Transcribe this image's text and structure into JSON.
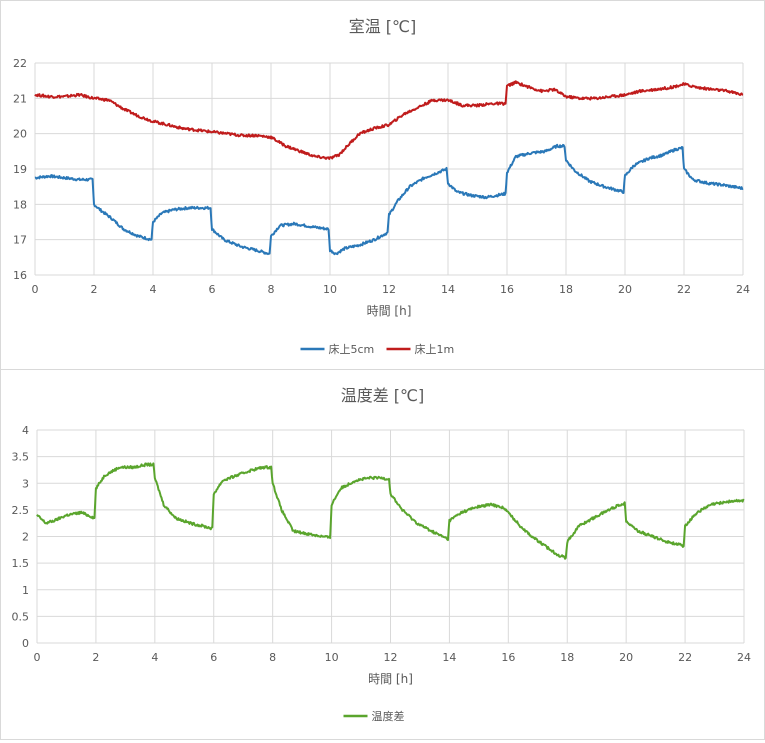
{
  "chart_data": [
    {
      "type": "line",
      "title": "室温 [℃]",
      "xlabel": "時間 [h]",
      "ylabel": "",
      "xlim": [
        0,
        24
      ],
      "ylim": [
        16,
        22
      ],
      "x_ticks": [
        "0",
        "2",
        "4",
        "6",
        "8",
        "10",
        "12",
        "14",
        "16",
        "18",
        "20",
        "22",
        "24"
      ],
      "y_ticks": [
        "16",
        "17",
        "18",
        "19",
        "20",
        "21",
        "22"
      ],
      "grid": true,
      "legend_position": "bottom",
      "series": [
        {
          "name": "床上5cm",
          "color": "#2a78b8",
          "x": [
            0,
            0.5,
            1.0,
            1.5,
            1.95,
            2.0,
            2.2,
            2.6,
            3.0,
            3.5,
            3.95,
            4.0,
            4.3,
            4.7,
            5.2,
            5.95,
            6.0,
            6.4,
            7.0,
            7.5,
            7.95,
            8.0,
            8.3,
            8.8,
            9.5,
            9.95,
            10.0,
            10.2,
            10.5,
            11.0,
            11.5,
            11.95,
            12.0,
            12.3,
            12.7,
            13.2,
            13.95,
            14.0,
            14.3,
            14.8,
            15.3,
            15.95,
            16.0,
            16.3,
            16.8,
            17.3,
            17.7,
            17.95,
            18.0,
            18.3,
            18.8,
            19.3,
            19.95,
            20.0,
            20.3,
            20.8,
            21.3,
            21.7,
            21.95,
            22.0,
            22.3,
            22.8,
            23.3,
            24.0
          ],
          "values": [
            18.75,
            18.8,
            18.75,
            18.7,
            18.7,
            18.0,
            17.85,
            17.6,
            17.3,
            17.1,
            17.0,
            17.5,
            17.75,
            17.85,
            17.9,
            17.9,
            17.3,
            17.0,
            16.8,
            16.7,
            16.6,
            17.1,
            17.4,
            17.45,
            17.35,
            17.3,
            16.7,
            16.6,
            16.75,
            16.85,
            17.0,
            17.2,
            17.7,
            18.1,
            18.5,
            18.75,
            19.0,
            18.6,
            18.35,
            18.25,
            18.2,
            18.3,
            18.9,
            19.35,
            19.45,
            19.5,
            19.65,
            19.65,
            19.25,
            18.95,
            18.65,
            18.5,
            18.35,
            18.8,
            19.1,
            19.3,
            19.4,
            19.55,
            19.6,
            19.0,
            18.7,
            18.6,
            18.55,
            18.45
          ]
        },
        {
          "name": "床上1m",
          "color": "#c01c1c",
          "x": [
            0,
            0.5,
            1.0,
            1.5,
            2.0,
            2.5,
            3.0,
            3.5,
            4.0,
            4.5,
            5.0,
            5.5,
            6.0,
            6.5,
            7.0,
            7.5,
            8.0,
            8.5,
            9.0,
            9.5,
            10.0,
            10.3,
            10.7,
            11.0,
            11.5,
            12.0,
            12.5,
            13.0,
            13.5,
            14.0,
            14.5,
            15.0,
            15.5,
            15.95,
            16.0,
            16.3,
            16.8,
            17.2,
            17.6,
            18.0,
            18.5,
            19.0,
            19.5,
            20.0,
            20.5,
            21.0,
            21.5,
            22.0,
            22.5,
            23.0,
            23.5,
            24.0
          ],
          "values": [
            21.1,
            21.05,
            21.05,
            21.1,
            21.0,
            20.95,
            20.7,
            20.5,
            20.35,
            20.25,
            20.15,
            20.1,
            20.05,
            20.0,
            19.95,
            19.95,
            19.9,
            19.65,
            19.5,
            19.35,
            19.3,
            19.4,
            19.75,
            20.0,
            20.15,
            20.25,
            20.55,
            20.75,
            20.95,
            20.95,
            20.8,
            20.8,
            20.85,
            20.85,
            21.35,
            21.45,
            21.3,
            21.2,
            21.25,
            21.05,
            21.0,
            21.0,
            21.05,
            21.1,
            21.2,
            21.25,
            21.3,
            21.4,
            21.3,
            21.25,
            21.2,
            21.1
          ]
        }
      ]
    },
    {
      "type": "line",
      "title": "温度差 [℃]",
      "xlabel": "時間 [h]",
      "ylabel": "",
      "xlim": [
        0,
        24
      ],
      "ylim": [
        0,
        4
      ],
      "x_ticks": [
        "0",
        "2",
        "4",
        "6",
        "8",
        "10",
        "12",
        "14",
        "16",
        "18",
        "20",
        "22",
        "24"
      ],
      "y_ticks": [
        "0",
        "0.5",
        "1",
        "1.5",
        "2",
        "2.5",
        "3",
        "3.5",
        "4"
      ],
      "grid": true,
      "legend_position": "bottom",
      "series": [
        {
          "name": "温度差",
          "color": "#5aa52d",
          "x": [
            0,
            0.3,
            0.6,
            1.0,
            1.5,
            1.95,
            2.0,
            2.3,
            2.8,
            3.3,
            3.7,
            3.95,
            4.0,
            4.3,
            4.7,
            5.2,
            5.6,
            5.95,
            6.0,
            6.3,
            6.8,
            7.3,
            7.7,
            7.95,
            8.0,
            8.3,
            8.7,
            9.2,
            9.7,
            9.95,
            10.0,
            10.3,
            10.8,
            11.3,
            11.7,
            11.95,
            12.0,
            12.4,
            12.9,
            13.4,
            13.95,
            14.0,
            14.4,
            14.9,
            15.4,
            15.8,
            16.0,
            16.4,
            16.8,
            17.3,
            17.7,
            17.95,
            18.0,
            18.4,
            18.9,
            19.4,
            19.8,
            19.95,
            20.0,
            20.4,
            20.9,
            21.4,
            21.8,
            21.95,
            22.0,
            22.4,
            22.9,
            23.4,
            24.0
          ],
          "values": [
            2.4,
            2.25,
            2.3,
            2.4,
            2.45,
            2.35,
            2.9,
            3.15,
            3.3,
            3.3,
            3.35,
            3.35,
            3.1,
            2.6,
            2.35,
            2.25,
            2.2,
            2.15,
            2.8,
            3.05,
            3.15,
            3.25,
            3.3,
            3.3,
            3.0,
            2.5,
            2.1,
            2.05,
            2.0,
            1.98,
            2.6,
            2.9,
            3.05,
            3.1,
            3.1,
            3.08,
            2.8,
            2.5,
            2.25,
            2.1,
            1.95,
            2.3,
            2.45,
            2.55,
            2.6,
            2.55,
            2.45,
            2.2,
            2.0,
            1.8,
            1.65,
            1.6,
            1.9,
            2.2,
            2.35,
            2.5,
            2.6,
            2.62,
            2.3,
            2.1,
            2.0,
            1.9,
            1.85,
            1.8,
            2.2,
            2.45,
            2.6,
            2.65,
            2.68
          ]
        }
      ]
    }
  ]
}
